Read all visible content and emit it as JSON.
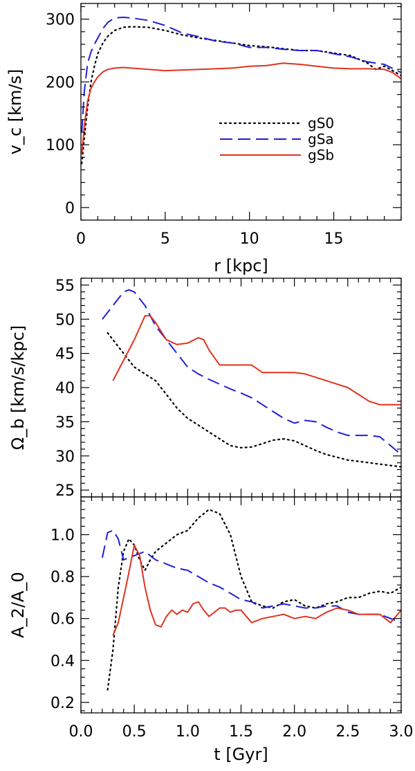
{
  "chart_data": [
    {
      "type": "line",
      "title": "",
      "xlabel": "r [kpc]",
      "ylabel": "v_c [km/s]",
      "xlim": [
        0,
        19
      ],
      "ylim": [
        -20,
        325
      ],
      "xticks": [
        0,
        5,
        10,
        15
      ],
      "yticks": [
        0,
        100,
        200,
        300
      ],
      "xtick_labels": [
        "0",
        "5",
        "10",
        "15"
      ],
      "ytick_labels": [
        "0",
        "100",
        "200",
        "300"
      ],
      "legend": [
        "gS0",
        "gSa",
        "gSb"
      ],
      "legend_position": "right-center",
      "series": [
        {
          "name": "gS0",
          "color": "#000000",
          "dash": "dotted",
          "x": [
            0.05,
            0.2,
            0.4,
            0.6,
            0.8,
            1.0,
            1.3,
            1.6,
            2.0,
            2.5,
            3.0,
            4.0,
            5.0,
            6.0,
            7.0,
            8.0,
            9.0,
            10.0,
            11.0,
            12.0,
            13.0,
            14.0,
            15.0,
            16.0,
            17.0,
            17.5,
            18.0,
            18.5,
            19.0
          ],
          "y": [
            70,
            110,
            160,
            200,
            225,
            245,
            262,
            273,
            282,
            287,
            288,
            287,
            282,
            275,
            270,
            266,
            262,
            258,
            256,
            253,
            250,
            250,
            246,
            242,
            230,
            220,
            225,
            218,
            210
          ]
        },
        {
          "name": "gSa",
          "color": "#1f1fd6",
          "dash": "long-dash",
          "x": [
            0.05,
            0.2,
            0.4,
            0.6,
            0.8,
            1.0,
            1.3,
            1.6,
            2.0,
            2.5,
            3.0,
            4.0,
            5.0,
            6.0,
            7.0,
            8.0,
            9.0,
            10.0,
            11.0,
            12.0,
            13.0,
            14.0,
            15.0,
            16.0,
            17.0,
            18.0,
            19.0
          ],
          "y": [
            120,
            185,
            230,
            248,
            260,
            270,
            285,
            295,
            302,
            303,
            302,
            298,
            290,
            278,
            272,
            265,
            262,
            255,
            255,
            252,
            250,
            250,
            245,
            240,
            232,
            228,
            215
          ]
        },
        {
          "name": "gSb",
          "color": "#e0321e",
          "dash": "solid",
          "x": [
            0.05,
            0.2,
            0.4,
            0.6,
            0.8,
            1.0,
            1.3,
            1.6,
            2.0,
            2.5,
            3.0,
            4.0,
            5.0,
            6.0,
            7.0,
            8.0,
            9.0,
            10.0,
            11.0,
            12.0,
            13.0,
            14.0,
            15.0,
            16.0,
            17.0,
            18.0,
            18.5,
            19.0
          ],
          "y": [
            85,
            130,
            170,
            190,
            200,
            208,
            216,
            220,
            222,
            223,
            222,
            220,
            218,
            219,
            220,
            221,
            222,
            225,
            226,
            230,
            228,
            225,
            222,
            221,
            221,
            220,
            215,
            205
          ]
        }
      ]
    },
    {
      "type": "line",
      "title": "",
      "xlabel": "",
      "ylabel": "Ω_b [km/s/kpc]",
      "xlim": [
        0,
        3.0
      ],
      "ylim": [
        24,
        56
      ],
      "xticks": [
        0.0,
        0.5,
        1.0,
        1.5,
        2.0,
        2.5,
        3.0
      ],
      "yticks": [
        25,
        30,
        35,
        40,
        45,
        50,
        55
      ],
      "ytick_labels": [
        "25",
        "30",
        "35",
        "40",
        "45",
        "50",
        "55"
      ],
      "series": [
        {
          "name": "gS0",
          "color": "#000000",
          "dash": "dotted",
          "x": [
            0.25,
            0.3,
            0.4,
            0.5,
            0.6,
            0.7,
            0.8,
            0.9,
            1.0,
            1.1,
            1.2,
            1.3,
            1.4,
            1.5,
            1.6,
            1.7,
            1.8,
            1.9,
            2.0,
            2.1,
            2.2,
            2.3,
            2.4,
            2.5,
            2.6,
            2.7,
            2.8,
            2.9,
            3.0
          ],
          "y": [
            48,
            47,
            45,
            43,
            42,
            41,
            39,
            37,
            35.5,
            34.5,
            33.5,
            32.5,
            31.5,
            31.2,
            31.3,
            31.8,
            32.3,
            32.5,
            32.2,
            31.5,
            30.8,
            30.2,
            29.8,
            29.4,
            29.2,
            29.0,
            28.8,
            28.6,
            28.4
          ]
        },
        {
          "name": "gSa",
          "color": "#1f1fd6",
          "dash": "long-dash",
          "x": [
            0.2,
            0.3,
            0.4,
            0.45,
            0.5,
            0.6,
            0.7,
            0.8,
            0.9,
            1.0,
            1.1,
            1.2,
            1.3,
            1.4,
            1.5,
            1.6,
            1.7,
            1.8,
            1.9,
            2.0,
            2.1,
            2.2,
            2.3,
            2.4,
            2.5,
            2.6,
            2.7,
            2.8,
            2.9,
            3.0
          ],
          "y": [
            50,
            52,
            54,
            54.3,
            54,
            52,
            49,
            47,
            45,
            43,
            42,
            41.2,
            40.5,
            39.8,
            39.2,
            38.5,
            37.5,
            36.5,
            35.5,
            34.8,
            35.2,
            35.0,
            34.2,
            33.5,
            33.0,
            33.0,
            33.0,
            32.8,
            31.5,
            30.2
          ]
        },
        {
          "name": "gSb",
          "color": "#e0321e",
          "dash": "solid",
          "x": [
            0.3,
            0.4,
            0.5,
            0.6,
            0.65,
            0.7,
            0.8,
            0.9,
            1.0,
            1.1,
            1.15,
            1.2,
            1.3,
            1.4,
            1.5,
            1.6,
            1.7,
            1.8,
            1.9,
            2.0,
            2.1,
            2.2,
            2.3,
            2.4,
            2.5,
            2.6,
            2.7,
            2.8,
            2.9,
            3.0
          ],
          "y": [
            41,
            44,
            47,
            50.5,
            50.5,
            49.5,
            47,
            46.3,
            46.5,
            47.3,
            47,
            45.5,
            43.3,
            43.3,
            43.3,
            43.3,
            42.2,
            42.2,
            42.2,
            42.2,
            42,
            41.5,
            41,
            40.5,
            40,
            39,
            38,
            37.5,
            37.5,
            37.5
          ]
        }
      ]
    },
    {
      "type": "line",
      "title": "",
      "xlabel": "t [Gyr]",
      "ylabel": "A_2/A_0",
      "xlim": [
        0,
        3.0
      ],
      "ylim": [
        0.15,
        1.18
      ],
      "xticks": [
        0.0,
        0.5,
        1.0,
        1.5,
        2.0,
        2.5,
        3.0
      ],
      "xtick_labels": [
        "0.0",
        "0.5",
        "1.0",
        "1.5",
        "2.0",
        "2.5",
        "3.0"
      ],
      "yticks": [
        0.2,
        0.4,
        0.6,
        0.8,
        1.0
      ],
      "ytick_labels": [
        "0.2",
        "0.4",
        "0.6",
        "0.8",
        "1.0"
      ],
      "series": [
        {
          "name": "gS0",
          "color": "#000000",
          "dash": "dotted",
          "x": [
            0.25,
            0.3,
            0.35,
            0.4,
            0.45,
            0.5,
            0.55,
            0.6,
            0.65,
            0.7,
            0.8,
            0.9,
            1.0,
            1.1,
            1.2,
            1.3,
            1.4,
            1.5,
            1.6,
            1.7,
            1.8,
            1.9,
            2.0,
            2.1,
            2.2,
            2.3,
            2.4,
            2.5,
            2.6,
            2.7,
            2.8,
            2.9,
            3.0
          ],
          "y": [
            0.26,
            0.45,
            0.75,
            0.92,
            0.98,
            0.95,
            0.88,
            0.83,
            0.88,
            0.92,
            0.96,
            1.0,
            1.02,
            1.08,
            1.12,
            1.1,
            1.0,
            0.8,
            0.68,
            0.66,
            0.65,
            0.68,
            0.69,
            0.66,
            0.65,
            0.67,
            0.68,
            0.7,
            0.7,
            0.72,
            0.73,
            0.72,
            0.75
          ]
        },
        {
          "name": "gSa",
          "color": "#1f1fd6",
          "dash": "long-dash",
          "x": [
            0.2,
            0.25,
            0.3,
            0.35,
            0.4,
            0.5,
            0.6,
            0.7,
            0.8,
            0.9,
            1.0,
            1.1,
            1.2,
            1.3,
            1.4,
            1.5,
            1.6,
            1.7,
            1.8,
            1.9,
            2.0,
            2.1,
            2.2,
            2.3,
            2.4,
            2.5,
            2.6,
            2.7,
            2.8,
            2.9,
            3.0
          ],
          "y": [
            0.89,
            1.01,
            1.02,
            0.98,
            0.88,
            0.9,
            0.92,
            0.88,
            0.86,
            0.84,
            0.83,
            0.8,
            0.77,
            0.75,
            0.72,
            0.69,
            0.68,
            0.65,
            0.66,
            0.67,
            0.66,
            0.65,
            0.65,
            0.66,
            0.66,
            0.63,
            0.62,
            0.62,
            0.62,
            0.6,
            0.58
          ]
        },
        {
          "name": "gSb",
          "color": "#e0321e",
          "dash": "solid",
          "x": [
            0.3,
            0.35,
            0.4,
            0.45,
            0.5,
            0.55,
            0.6,
            0.65,
            0.7,
            0.75,
            0.8,
            0.85,
            0.9,
            0.95,
            1.0,
            1.05,
            1.1,
            1.15,
            1.2,
            1.25,
            1.3,
            1.35,
            1.4,
            1.45,
            1.5,
            1.6,
            1.7,
            1.8,
            1.9,
            2.0,
            2.1,
            2.2,
            2.3,
            2.4,
            2.5,
            2.6,
            2.7,
            2.8,
            2.9,
            3.0
          ],
          "y": [
            0.52,
            0.58,
            0.7,
            0.82,
            0.95,
            0.9,
            0.75,
            0.64,
            0.57,
            0.56,
            0.61,
            0.64,
            0.62,
            0.64,
            0.63,
            0.67,
            0.68,
            0.64,
            0.61,
            0.63,
            0.65,
            0.65,
            0.63,
            0.64,
            0.64,
            0.58,
            0.6,
            0.61,
            0.62,
            0.6,
            0.61,
            0.6,
            0.63,
            0.65,
            0.64,
            0.62,
            0.62,
            0.62,
            0.58,
            0.64
          ]
        }
      ]
    }
  ]
}
